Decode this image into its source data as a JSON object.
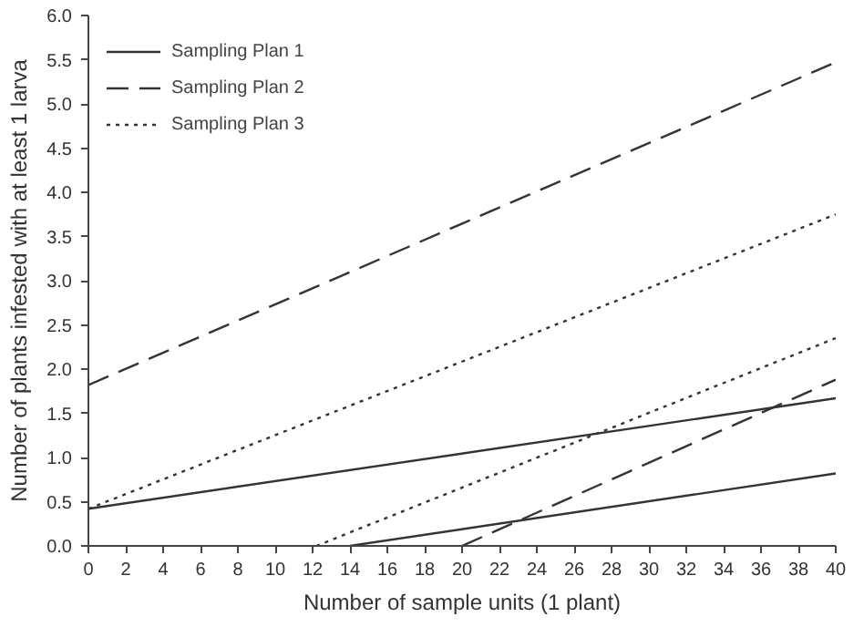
{
  "chart_data": {
    "type": "line",
    "xlabel": "Number of sample units (1 plant)",
    "ylabel": "Number of plants infested with at least 1 larva",
    "xlim": [
      0,
      40
    ],
    "xticks": [
      0,
      2,
      4,
      6,
      8,
      10,
      12,
      14,
      16,
      18,
      20,
      22,
      24,
      26,
      28,
      30,
      32,
      34,
      36,
      38,
      40
    ],
    "ylim": [
      0,
      6
    ],
    "yticks": [
      {
        "value": 0,
        "label": "0.0"
      },
      {
        "value": 0.5,
        "label": "0.5"
      },
      {
        "value": 1,
        "label": "1.0"
      },
      {
        "value": 1.5,
        "label": "1.5"
      },
      {
        "value": 2,
        "label": "2.0"
      },
      {
        "value": 2.5,
        "label": "2.5"
      },
      {
        "value": 3,
        "label": "3.0"
      },
      {
        "value": 3.5,
        "label": "3.5"
      },
      {
        "value": 4,
        "label": "4.0"
      },
      {
        "value": 4.5,
        "label": "4.5"
      },
      {
        "value": 5,
        "label": "5.0"
      },
      {
        "value": 5.5,
        "label": "5.5"
      },
      {
        "value": 6,
        "label": "6.0"
      }
    ],
    "grid": false,
    "legend": "top left",
    "marker": "none",
    "series": [
      {
        "name": "Sampling Plan 1",
        "color": "#333333",
        "line_style": "solid",
        "x": [
          0,
          40
        ],
        "values": [
          0.42,
          1.67
        ]
      },
      {
        "name": "Sampling Plan 2",
        "color": "#333333",
        "line_style": "dashed",
        "x": [
          0,
          40
        ],
        "values": [
          1.82,
          5.47
        ]
      },
      {
        "name": "Sampling Plan 3",
        "color": "#333333",
        "line_style": "dotted",
        "x": [
          0,
          40
        ],
        "values": [
          0.42,
          3.75
        ]
      },
      {
        "color": "#333333",
        "line_style": "solid",
        "x": [
          14,
          40
        ],
        "values": [
          0,
          0.82
        ]
      },
      {
        "color": "#333333",
        "line_style": "dashed",
        "x": [
          20,
          40
        ],
        "values": [
          0,
          1.88
        ]
      },
      {
        "color": "#333333",
        "line_style": "dotted",
        "x": [
          12.2,
          40
        ],
        "values": [
          0,
          2.35
        ]
      }
    ]
  }
}
